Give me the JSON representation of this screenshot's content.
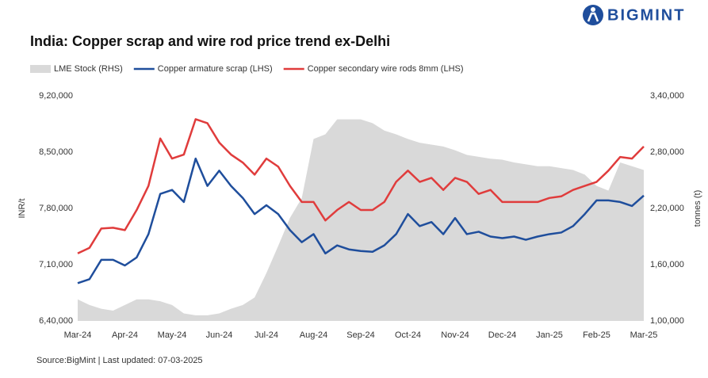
{
  "brand": "BIGMINT",
  "chart_data": {
    "type": "line",
    "title": "India: Copper scrap and wire rod price trend ex-Delhi",
    "source": "Source:BigMint | Last updated: 07-03-2025",
    "ylabel": "INR/t",
    "y2label": "tonnes (t)",
    "categories": [
      "Mar-24",
      null,
      null,
      null,
      "Apr-24",
      null,
      null,
      null,
      "May-24",
      null,
      null,
      null,
      "Jun-24",
      null,
      null,
      null,
      "Jul-24",
      null,
      null,
      null,
      "Aug-24",
      null,
      null,
      null,
      "Sep-24",
      null,
      null,
      null,
      "Oct-24",
      null,
      null,
      null,
      "Nov-24",
      null,
      null,
      null,
      "Dec-24",
      null,
      null,
      null,
      "Jan-25",
      null,
      null,
      null,
      "Feb-25",
      null,
      null,
      null,
      "Mar-25"
    ],
    "ylim": [
      640000,
      920000
    ],
    "yticks": [
      {
        "value": 640000,
        "label": "6,40,000"
      },
      {
        "value": 710000,
        "label": "7,10,000"
      },
      {
        "value": 780000,
        "label": "7,80,000"
      },
      {
        "value": 850000,
        "label": "8,50,000"
      },
      {
        "value": 920000,
        "label": "9,20,000"
      }
    ],
    "y2lim": [
      100000,
      340000
    ],
    "y2ticks": [
      {
        "value": 100000,
        "label": "1,00,000"
      },
      {
        "value": 160000,
        "label": "1,60,000"
      },
      {
        "value": 220000,
        "label": "2,20,000"
      },
      {
        "value": 280000,
        "label": "2,80,000"
      },
      {
        "value": 340000,
        "label": "3,40,000"
      }
    ],
    "series": [
      {
        "name": "LME Stock (RHS)",
        "color": "#d9d9d9",
        "type": "area",
        "axis": "y2",
        "values": [
          123000,
          117000,
          113000,
          111000,
          117000,
          123000,
          123000,
          121000,
          117000,
          108000,
          106000,
          106000,
          108000,
          113000,
          117000,
          125000,
          151000,
          180000,
          210000,
          231000,
          294000,
          299000,
          315000,
          315000,
          315000,
          311000,
          303000,
          299000,
          294000,
          290000,
          288000,
          286000,
          282000,
          277000,
          275000,
          273000,
          272000,
          269000,
          267000,
          265000,
          265000,
          263000,
          261000,
          256000,
          244000,
          239000,
          269000,
          265000,
          261000
        ]
      },
      {
        "name": "Copper armature scrap (LHS)",
        "color": "#1f4e9c",
        "type": "line",
        "values": [
          687000,
          692000,
          716000,
          716000,
          709000,
          719000,
          748000,
          798000,
          803000,
          788000,
          842000,
          808000,
          827000,
          808000,
          793000,
          773000,
          784000,
          773000,
          753000,
          738000,
          748000,
          724000,
          734000,
          729000,
          727000,
          726000,
          734000,
          748000,
          773000,
          758000,
          763000,
          748000,
          768000,
          748000,
          751000,
          745000,
          743000,
          745000,
          741000,
          745000,
          748000,
          750000,
          758000,
          773000,
          790000,
          790000,
          788000,
          783000,
          796000
        ]
      },
      {
        "name": "Copper secondary wire rods 8mm (LHS)",
        "color": "#e03c3c",
        "type": "line",
        "values": [
          724000,
          731000,
          755000,
          756000,
          753000,
          778000,
          808000,
          867000,
          842000,
          847000,
          891000,
          886000,
          862000,
          847000,
          837000,
          822000,
          842000,
          832000,
          808000,
          788000,
          788000,
          765000,
          778000,
          788000,
          778000,
          778000,
          788000,
          813000,
          827000,
          813000,
          818000,
          803000,
          818000,
          813000,
          798000,
          803000,
          788000,
          788000,
          788000,
          788000,
          793000,
          795000,
          803000,
          808000,
          813000,
          827000,
          844000,
          842000,
          857000
        ]
      }
    ]
  }
}
